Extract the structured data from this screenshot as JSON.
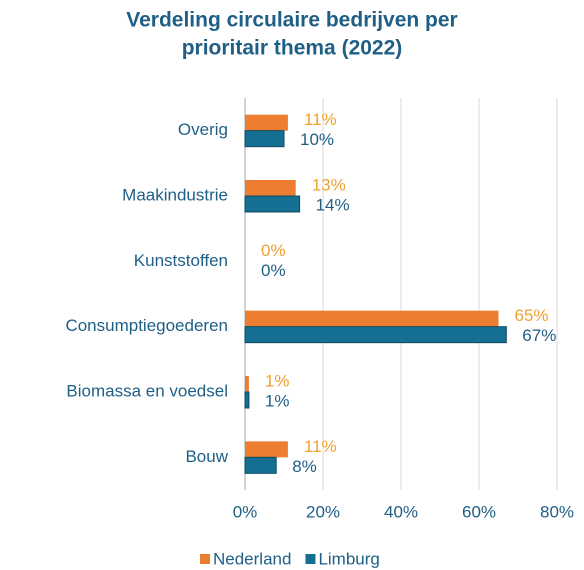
{
  "chart_data": {
    "type": "hbar",
    "title": [
      "Verdeling circulaire bedrijven per",
      "prioritair thema (2022)"
    ],
    "categories": [
      "Overig",
      "Maakindustrie",
      "Kunststoffen",
      "Consumptiegoederen",
      "Biomassa en voedsel",
      "Bouw"
    ],
    "series": [
      {
        "name": "Nederland",
        "color": "#ED7D31",
        "label_color": "#F0A030",
        "values": [
          11,
          13,
          0,
          65,
          1,
          11
        ],
        "value_labels": [
          "11%",
          "13%",
          "0%",
          "65%",
          "1%",
          "11%"
        ]
      },
      {
        "name": "Limburg",
        "color": "#156F93",
        "label_color": "#1F5F86",
        "values": [
          10,
          14,
          0,
          67,
          1,
          8
        ],
        "value_labels": [
          "10%",
          "14%",
          "0%",
          "67%",
          "1%",
          "8%"
        ]
      }
    ],
    "xlim": [
      0,
      80
    ],
    "xticks": [
      {
        "value": 0,
        "label": "0%"
      },
      {
        "value": 20,
        "label": "20%"
      },
      {
        "value": 40,
        "label": "40%"
      },
      {
        "value": 60,
        "label": "60%"
      },
      {
        "value": 80,
        "label": "80%"
      }
    ],
    "grid": true,
    "legend": "bottom"
  }
}
